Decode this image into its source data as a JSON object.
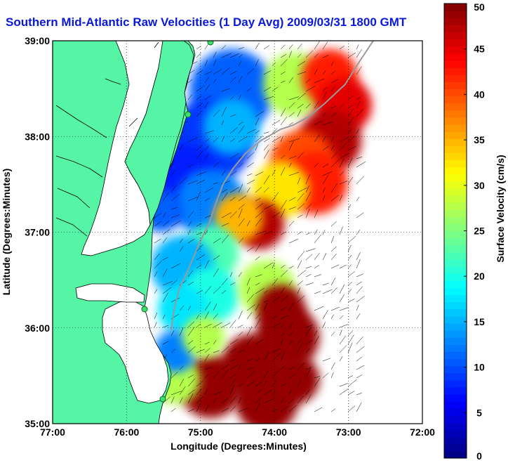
{
  "title": "Southern Mid-Atlantic Raw Velocities (1 Day Avg) 2009/03/31 1800 GMT",
  "map": {
    "xlabel": "Longitude (Degrees:Minutes)",
    "ylabel": "Latitude (Degrees:Minutes)",
    "lon_range": [
      -77,
      -72
    ],
    "lat_range": [
      35,
      39
    ],
    "x_ticks": [
      {
        "value": -77,
        "label": "77:00"
      },
      {
        "value": -76,
        "label": "76:00"
      },
      {
        "value": -75,
        "label": "75:00"
      },
      {
        "value": -74,
        "label": "74:00"
      },
      {
        "value": -73,
        "label": "73:00"
      },
      {
        "value": -72,
        "label": "72:00"
      }
    ],
    "y_ticks": [
      {
        "value": 39,
        "label": "39:00"
      },
      {
        "value": 38,
        "label": "38:00"
      },
      {
        "value": 37,
        "label": "37:00"
      },
      {
        "value": 36,
        "label": "36:00"
      },
      {
        "value": 35,
        "label": "35:00"
      }
    ],
    "grid": "dotted",
    "land_color": "#55f5a5",
    "water_color": "#ffffff"
  },
  "colorbar": {
    "label": "Surface Velocity (cm/s)",
    "min": 0,
    "max": 50,
    "ticks": [
      {
        "value": 50,
        "label": "50"
      },
      {
        "value": 45,
        "label": "45"
      },
      {
        "value": 40,
        "label": "40"
      },
      {
        "value": 35,
        "label": "35"
      },
      {
        "value": 30,
        "label": "30"
      },
      {
        "value": 25,
        "label": "25"
      },
      {
        "value": 20,
        "label": "20"
      },
      {
        "value": 15,
        "label": "15"
      },
      {
        "value": 10,
        "label": "10"
      },
      {
        "value": 5,
        "label": "5"
      },
      {
        "value": 0,
        "label": "0"
      }
    ],
    "colormap": "jet"
  }
}
